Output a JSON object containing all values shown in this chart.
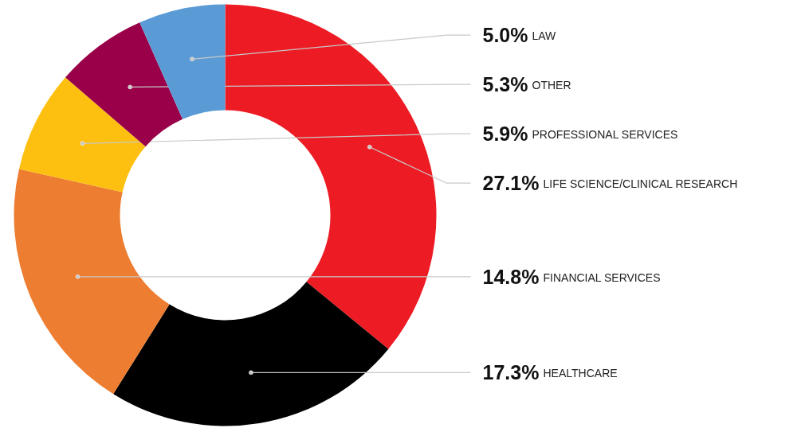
{
  "chart_data": {
    "type": "donut",
    "categories": [
      "LIFE SCIENCE/CLINICAL RESEARCH",
      "HEALTHCARE",
      "FINANCIAL SERVICES",
      "PROFESSIONAL SERVICES",
      "OTHER",
      "LAW"
    ],
    "values": [
      27.1,
      17.3,
      14.8,
      5.9,
      5.3,
      5.0
    ],
    "colors": [
      "#ed1c24",
      "#000000",
      "#ed7d31",
      "#fdc010",
      "#990049",
      "#5b9bd5"
    ],
    "value_labels": [
      "27.1%",
      "17.3%",
      "14.8%",
      "5.9%",
      "5.3%",
      "5.0%"
    ]
  }
}
